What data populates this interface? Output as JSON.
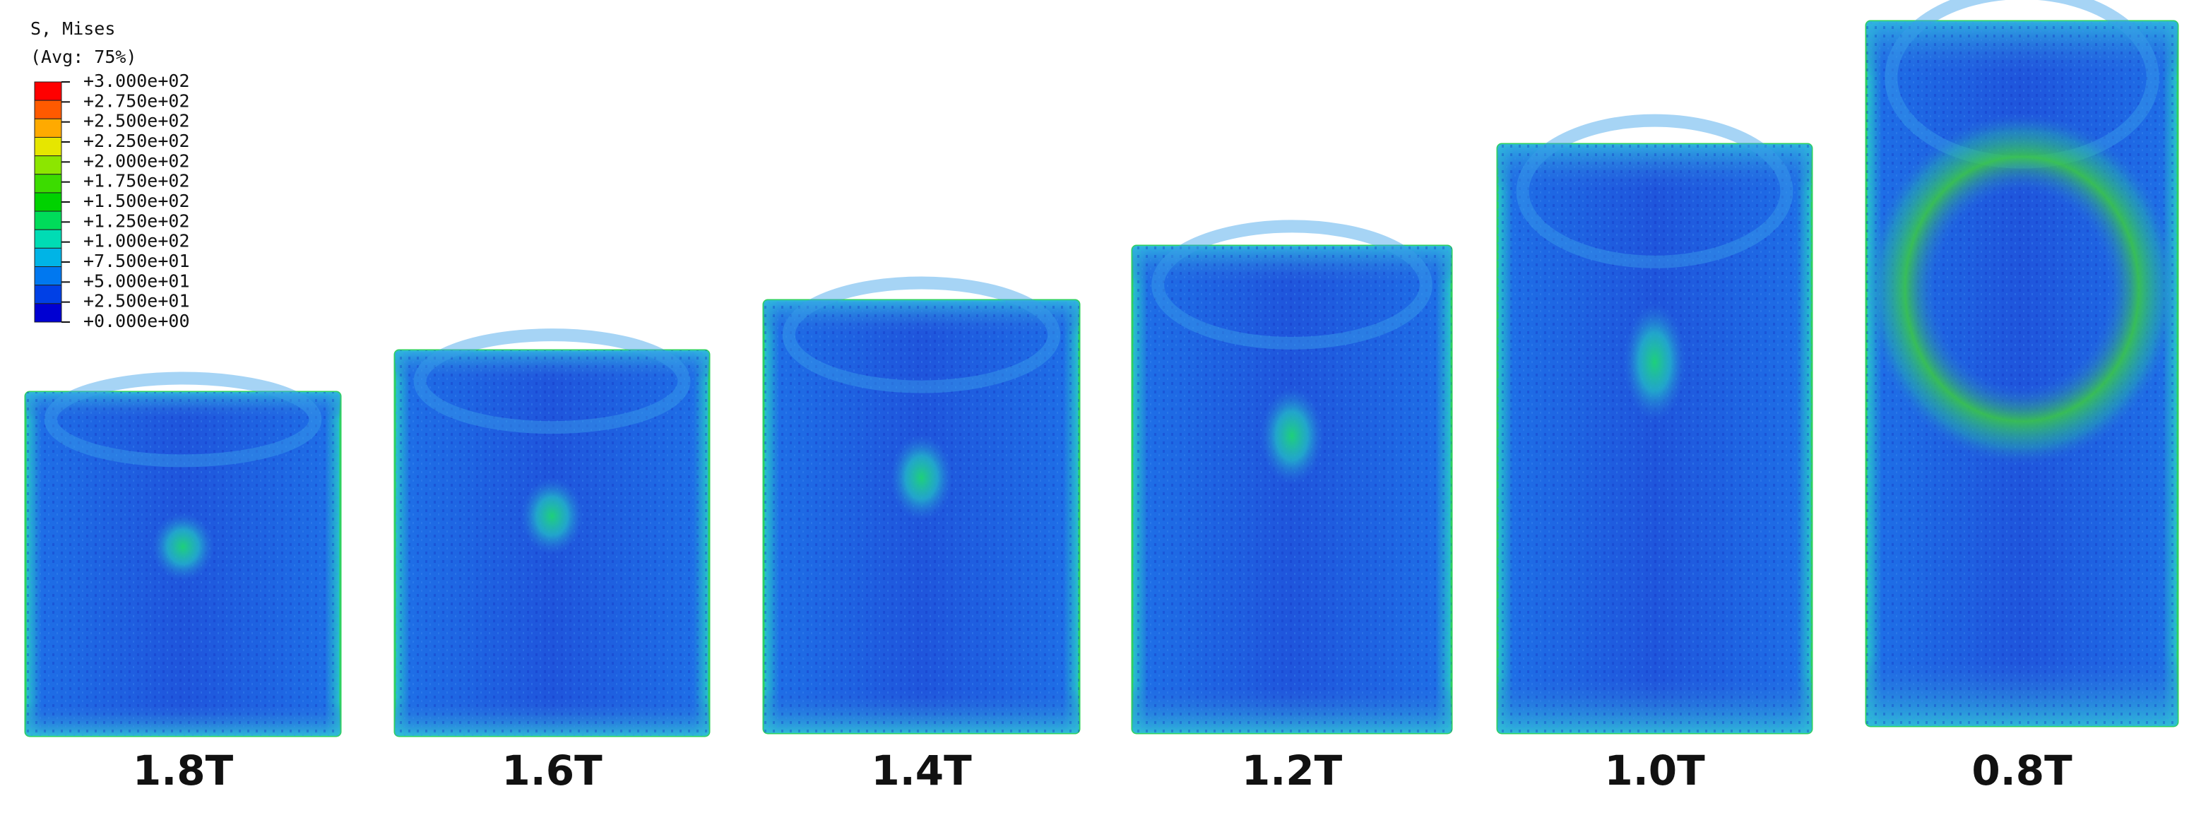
{
  "legend": {
    "title": "S, Mises",
    "subtitle": "(Avg: 75%)",
    "levels": [
      "+3.000e+02",
      "+2.750e+02",
      "+2.500e+02",
      "+2.250e+02",
      "+2.000e+02",
      "+1.750e+02",
      "+1.500e+02",
      "+1.250e+02",
      "+1.000e+02",
      "+7.500e+01",
      "+5.000e+01",
      "+2.500e+01",
      "+0.000e+00"
    ],
    "colors": [
      "#ff0000",
      "#ff5a00",
      "#ffaa00",
      "#e6e600",
      "#8ce600",
      "#3cdc00",
      "#00d200",
      "#00dc5a",
      "#00dcb4",
      "#00b4e6",
      "#0078f0",
      "#0040e6",
      "#0000d2"
    ]
  },
  "panels": [
    {
      "label": "1.8T"
    },
    {
      "label": "1.6T"
    },
    {
      "label": "1.4T"
    },
    {
      "label": "1.2T"
    },
    {
      "label": "1.0T"
    },
    {
      "label": "0.8T"
    }
  ]
}
